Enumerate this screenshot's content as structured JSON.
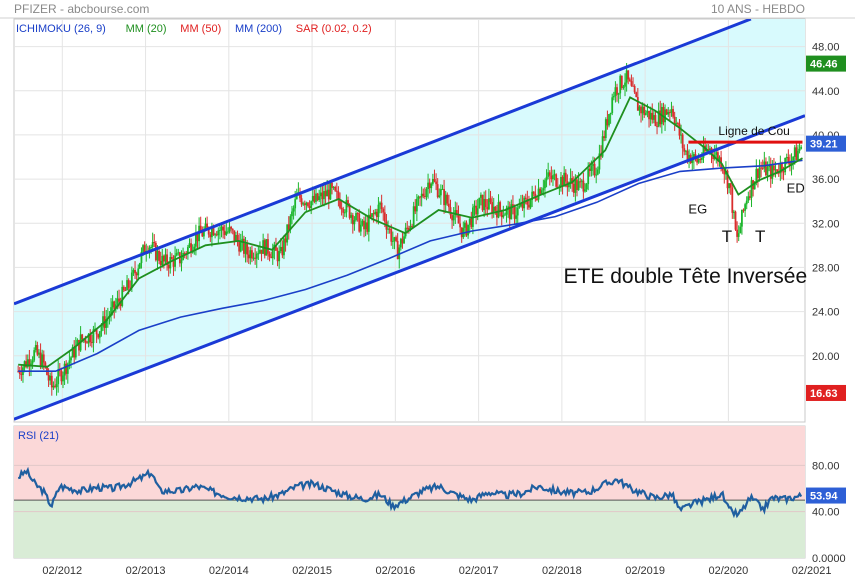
{
  "header": {
    "symbol": "PFIZER - abcbourse.com",
    "period": "10 ANS - HEBDO"
  },
  "legend": [
    {
      "label": "ICHIMOKU (26, 9)",
      "color": "#1a3fc8"
    },
    {
      "label": "MM (20)",
      "color": "#1f8f1f"
    },
    {
      "label": "MM (50)",
      "color": "#e02020"
    },
    {
      "label": "MM (200)",
      "color": "#1a3fc8"
    },
    {
      "label": "SAR (0.02, 0.2)",
      "color": "#e02020"
    }
  ],
  "colors": {
    "bull": "#1bb52a",
    "bear": "#d92d2d",
    "mm20": "#1f8f1f",
    "mm200": "#1a3fc8",
    "channel": "#1a3ad6",
    "channel_fill": "#d8fafd",
    "neckline": "#e01010",
    "rsi_line": "#1f5fa0",
    "rsi_over": "#fbd8d8",
    "rsi_under": "#d9ecd6",
    "last_price_bg": "#2d5fd6",
    "high_bg": "#1f8f1f",
    "low_bg": "#e02020"
  },
  "chart_data": [
    {
      "type": "candlestick",
      "title": "PFIZER",
      "ylim": [
        14,
        50.5
      ],
      "yticks": [
        "48.00",
        "44.00",
        "40.00",
        "36.00",
        "32.00",
        "28.00",
        "24.00",
        "20.00"
      ],
      "ytick_values": [
        48,
        44,
        40,
        36,
        32,
        28,
        24,
        20
      ],
      "x_start": 2011.5,
      "x_end": 2021.0,
      "xticks": [
        "02/2012",
        "02/2013",
        "02/2014",
        "02/2015",
        "02/2016",
        "02/2017",
        "02/2018",
        "02/2019",
        "02/2020",
        "02/2021"
      ],
      "xtick_values": [
        2012.08,
        2013.08,
        2014.08,
        2015.08,
        2016.08,
        2017.08,
        2018.08,
        2019.08,
        2020.08,
        2021.08
      ],
      "last_price": {
        "label": "39.21",
        "value": 39.21
      },
      "period_high": {
        "label": "46.46",
        "value": 46.46
      },
      "period_low": {
        "label": "16.63",
        "value": 16.63
      },
      "price_path": [
        [
          2011.55,
          18.6
        ],
        [
          2011.75,
          20.3
        ],
        [
          2011.85,
          19.4
        ],
        [
          2011.95,
          17.1
        ],
        [
          2012.1,
          18.8
        ],
        [
          2012.3,
          21.4
        ],
        [
          2012.5,
          22.2
        ],
        [
          2012.7,
          24.3
        ],
        [
          2012.9,
          26.6
        ],
        [
          2013.1,
          30.3
        ],
        [
          2013.3,
          28.4
        ],
        [
          2013.5,
          28.8
        ],
        [
          2013.7,
          30.9
        ],
        [
          2013.9,
          31.6
        ],
        [
          2014.1,
          31.2
        ],
        [
          2014.3,
          29.3
        ],
        [
          2014.5,
          29.9
        ],
        [
          2014.7,
          29.0
        ],
        [
          2014.9,
          34.4
        ],
        [
          2015.1,
          33.9
        ],
        [
          2015.3,
          34.9
        ],
        [
          2015.5,
          33.4
        ],
        [
          2015.7,
          31.4
        ],
        [
          2015.9,
          33.6
        ],
        [
          2016.1,
          29.4
        ],
        [
          2016.3,
          32.8
        ],
        [
          2016.5,
          36.1
        ],
        [
          2016.7,
          33.9
        ],
        [
          2016.9,
          31.1
        ],
        [
          2017.1,
          33.9
        ],
        [
          2017.3,
          33.3
        ],
        [
          2017.5,
          32.9
        ],
        [
          2017.7,
          34.1
        ],
        [
          2017.9,
          36.1
        ],
        [
          2018.1,
          35.9
        ],
        [
          2018.3,
          35.3
        ],
        [
          2018.5,
          37.1
        ],
        [
          2018.7,
          43.9
        ],
        [
          2018.85,
          45.2
        ],
        [
          2019.0,
          42.5
        ],
        [
          2019.2,
          41.4
        ],
        [
          2019.4,
          42.5
        ],
        [
          2019.55,
          38.5
        ],
        [
          2019.7,
          37.6
        ],
        [
          2019.85,
          38.8
        ],
        [
          2020.0,
          37.6
        ],
        [
          2020.1,
          35.2
        ],
        [
          2020.18,
          30.3
        ],
        [
          2020.3,
          34.4
        ],
        [
          2020.45,
          37.1
        ],
        [
          2020.6,
          36.6
        ],
        [
          2020.75,
          37.4
        ],
        [
          2020.9,
          38.3
        ],
        [
          2020.97,
          39.2
        ]
      ],
      "mm20_path": [
        [
          2011.55,
          19.2
        ],
        [
          2011.9,
          19.0
        ],
        [
          2012.2,
          20.6
        ],
        [
          2012.6,
          23.1
        ],
        [
          2013.0,
          27.0
        ],
        [
          2013.4,
          28.6
        ],
        [
          2013.8,
          30.0
        ],
        [
          2014.2,
          30.4
        ],
        [
          2014.6,
          29.6
        ],
        [
          2015.0,
          33.0
        ],
        [
          2015.4,
          34.2
        ],
        [
          2015.8,
          32.4
        ],
        [
          2016.2,
          31.1
        ],
        [
          2016.6,
          33.2
        ],
        [
          2017.0,
          32.5
        ],
        [
          2017.4,
          33.2
        ],
        [
          2017.8,
          34.5
        ],
        [
          2018.2,
          35.7
        ],
        [
          2018.6,
          38.6
        ],
        [
          2018.9,
          43.4
        ],
        [
          2019.2,
          42.2
        ],
        [
          2019.5,
          40.6
        ],
        [
          2019.8,
          38.8
        ],
        [
          2020.0,
          37.4
        ],
        [
          2020.2,
          34.6
        ],
        [
          2020.45,
          35.9
        ],
        [
          2020.7,
          36.7
        ],
        [
          2020.97,
          37.9
        ]
      ],
      "mm200_path": [
        [
          2011.55,
          18.6
        ],
        [
          2012.0,
          18.6
        ],
        [
          2012.5,
          20.2
        ],
        [
          2013.0,
          22.3
        ],
        [
          2013.5,
          23.5
        ],
        [
          2014.0,
          24.3
        ],
        [
          2014.5,
          25.0
        ],
        [
          2015.0,
          26.0
        ],
        [
          2015.5,
          27.3
        ],
        [
          2016.0,
          28.8
        ],
        [
          2016.5,
          30.4
        ],
        [
          2017.0,
          31.3
        ],
        [
          2017.5,
          31.9
        ],
        [
          2018.0,
          32.6
        ],
        [
          2018.5,
          33.9
        ],
        [
          2019.0,
          35.6
        ],
        [
          2019.5,
          36.7
        ],
        [
          2020.0,
          37.0
        ],
        [
          2020.5,
          37.2
        ],
        [
          2020.97,
          37.7
        ]
      ],
      "channel_upper": [
        [
          2011.5,
          24.7
        ],
        [
          2020.35,
          50.5
        ]
      ],
      "channel_lower": [
        [
          2011.5,
          14.25
        ],
        [
          2021.0,
          41.75
        ]
      ],
      "neckline": {
        "from": 2019.6,
        "to": 2020.97,
        "value": 39.35
      },
      "annotations": [
        {
          "text": "Ligne de Cou",
          "x": 2019.96,
          "y": 40.0
        },
        {
          "text": "EG",
          "x": 2019.6,
          "y": 32.9
        },
        {
          "text": "T",
          "x": 2020.0,
          "y": 30.3
        },
        {
          "text": "T",
          "x": 2020.4,
          "y": 30.3
        },
        {
          "text": "ED",
          "x": 2020.78,
          "y": 34.8
        },
        {
          "text": "ETE double Tête Inversée",
          "x": 2018.1,
          "y": 26.6
        }
      ]
    },
    {
      "type": "line",
      "title": "RSI (21)",
      "ylim": [
        0,
        114
      ],
      "yticks": [
        "80.00",
        "40.00",
        "0.0000"
      ],
      "ytick_values": [
        80,
        40,
        0
      ],
      "overbought": 70,
      "reference": 50,
      "last_value": {
        "label": "53.94",
        "value": 53.94
      },
      "values_path": [
        [
          2011.55,
          70
        ],
        [
          2011.65,
          75
        ],
        [
          2011.75,
          64
        ],
        [
          2011.85,
          58
        ],
        [
          2011.95,
          45
        ],
        [
          2012.05,
          62
        ],
        [
          2012.3,
          58
        ],
        [
          2012.5,
          61
        ],
        [
          2012.7,
          60
        ],
        [
          2012.9,
          65
        ],
        [
          2013.05,
          70
        ],
        [
          2013.15,
          74
        ],
        [
          2013.25,
          58
        ],
        [
          2013.5,
          58
        ],
        [
          2013.7,
          62
        ],
        [
          2013.9,
          57
        ],
        [
          2014.1,
          53
        ],
        [
          2014.3,
          52
        ],
        [
          2014.5,
          51
        ],
        [
          2014.7,
          55
        ],
        [
          2014.9,
          62
        ],
        [
          2015.1,
          64
        ],
        [
          2015.3,
          59
        ],
        [
          2015.5,
          54
        ],
        [
          2015.7,
          51
        ],
        [
          2015.9,
          55
        ],
        [
          2016.05,
          45
        ],
        [
          2016.2,
          50
        ],
        [
          2016.4,
          58
        ],
        [
          2016.6,
          62
        ],
        [
          2016.8,
          55
        ],
        [
          2017.0,
          50
        ],
        [
          2017.2,
          57
        ],
        [
          2017.4,
          54
        ],
        [
          2017.6,
          56
        ],
        [
          2017.8,
          62
        ],
        [
          2018.0,
          58
        ],
        [
          2018.2,
          56
        ],
        [
          2018.4,
          57
        ],
        [
          2018.6,
          64
        ],
        [
          2018.75,
          68
        ],
        [
          2018.9,
          60
        ],
        [
          2019.05,
          56
        ],
        [
          2019.2,
          52
        ],
        [
          2019.4,
          55
        ],
        [
          2019.5,
          41
        ],
        [
          2019.65,
          47
        ],
        [
          2019.85,
          51
        ],
        [
          2020.0,
          56
        ],
        [
          2020.08,
          42
        ],
        [
          2020.2,
          37
        ],
        [
          2020.35,
          52
        ],
        [
          2020.5,
          42
        ],
        [
          2020.6,
          52
        ],
        [
          2020.75,
          51
        ],
        [
          2020.9,
          53
        ],
        [
          2020.97,
          53.94
        ]
      ]
    }
  ]
}
